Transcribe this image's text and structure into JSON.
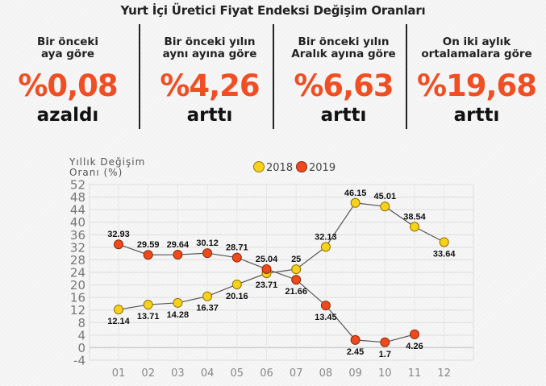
{
  "title": "Yurt İçi Üretici Fiyat Endeksi Değişim Oranları",
  "stats": [
    {
      "label_line1": "Bir önceki",
      "label_line2": "aya göre",
      "value": "%0,08",
      "direction": "azaldı"
    },
    {
      "label_line1": "Bir önceki yılın",
      "label_line2": "aynı ayına göre",
      "value": "%4,26",
      "direction": "arttı"
    },
    {
      "label_line1": "Bir önceki yılın",
      "label_line2": "Aralık ayına göre",
      "value": "%6,63",
      "direction": "arttı"
    },
    {
      "label_line1": "On iki aylık",
      "label_line2": "ortalamalara göre",
      "value": "%19,68",
      "direction": "arttı"
    }
  ],
  "colors": {
    "accent": "#f04e23",
    "series_2018": "#f7d11a",
    "series_2019": "#ee4a1c",
    "line": "#555555",
    "grid": "#dddddd"
  },
  "chart_data": {
    "type": "line",
    "title": "",
    "ylabel_line1": "Yıllık Değişim",
    "ylabel_line2": "Oranı (%)",
    "xlabel": "",
    "categories": [
      "01",
      "02",
      "03",
      "04",
      "05",
      "06",
      "07",
      "08",
      "09",
      "10",
      "11",
      "12"
    ],
    "ylim": [
      -4,
      52
    ],
    "yticks": [
      52,
      48,
      44,
      40,
      36,
      32,
      28,
      24,
      20,
      16,
      12,
      8,
      4,
      0,
      -4
    ],
    "grid": true,
    "legend_position": "top-center",
    "series": [
      {
        "name": "2018",
        "values": [
          12.14,
          13.71,
          14.28,
          16.37,
          20.16,
          23.71,
          25,
          32.13,
          46.15,
          45.01,
          38.54,
          33.64
        ],
        "labels": [
          "12.14",
          "13.71",
          "14.28",
          "16.37",
          "20.16",
          "23.71",
          "25",
          "32.13",
          "46.15",
          "45.01",
          "38.54",
          "33.64"
        ],
        "label_pos": [
          "below",
          "below",
          "below",
          "below",
          "below",
          "below",
          "above",
          "above",
          "above",
          "above",
          "above",
          "below"
        ]
      },
      {
        "name": "2019",
        "values": [
          32.93,
          29.59,
          29.64,
          30.12,
          28.71,
          25.04,
          21.66,
          13.45,
          2.45,
          1.7,
          4.26,
          null
        ],
        "labels": [
          "32.93",
          "29.59",
          "29.64",
          "30.12",
          "28.71",
          "25.04",
          "21.66",
          "13.45",
          "2.45",
          "1.7",
          "4.26",
          ""
        ],
        "label_pos": [
          "above",
          "above",
          "above",
          "above",
          "above",
          "above",
          "below",
          "below",
          "below",
          "below",
          "below",
          ""
        ]
      }
    ]
  }
}
